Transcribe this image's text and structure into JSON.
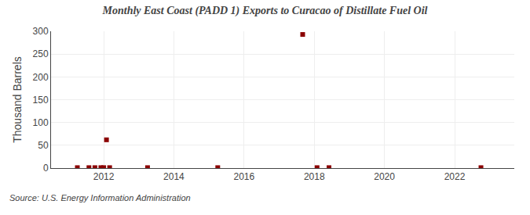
{
  "chart_data": {
    "type": "scatter",
    "title": "Monthly East Coast (PADD 1) Exports to Curacao of Distillate Fuel Oil",
    "ylabel": "Thousand Barrels",
    "annotations": [
      "Source: U.S. Energy Information Administration"
    ],
    "x": [
      2011.25,
      2011.58,
      2011.75,
      2011.92,
      2012.0,
      2012.08,
      2012.17,
      2013.25,
      2015.25,
      2017.67,
      2018.08,
      2018.42,
      2022.75
    ],
    "values": [
      1,
      1,
      1,
      1,
      1,
      62,
      1,
      1,
      1,
      293,
      1,
      1,
      1
    ],
    "color": "#8b0000",
    "marker": "square",
    "xlim": [
      2010.5,
      2023.7
    ],
    "xticks": [
      2012,
      2014,
      2016,
      2018,
      2020,
      2022
    ],
    "ylim": [
      0,
      300
    ],
    "yticks": [
      0,
      50,
      100,
      150,
      200,
      250,
      300
    ],
    "grid": true
  }
}
